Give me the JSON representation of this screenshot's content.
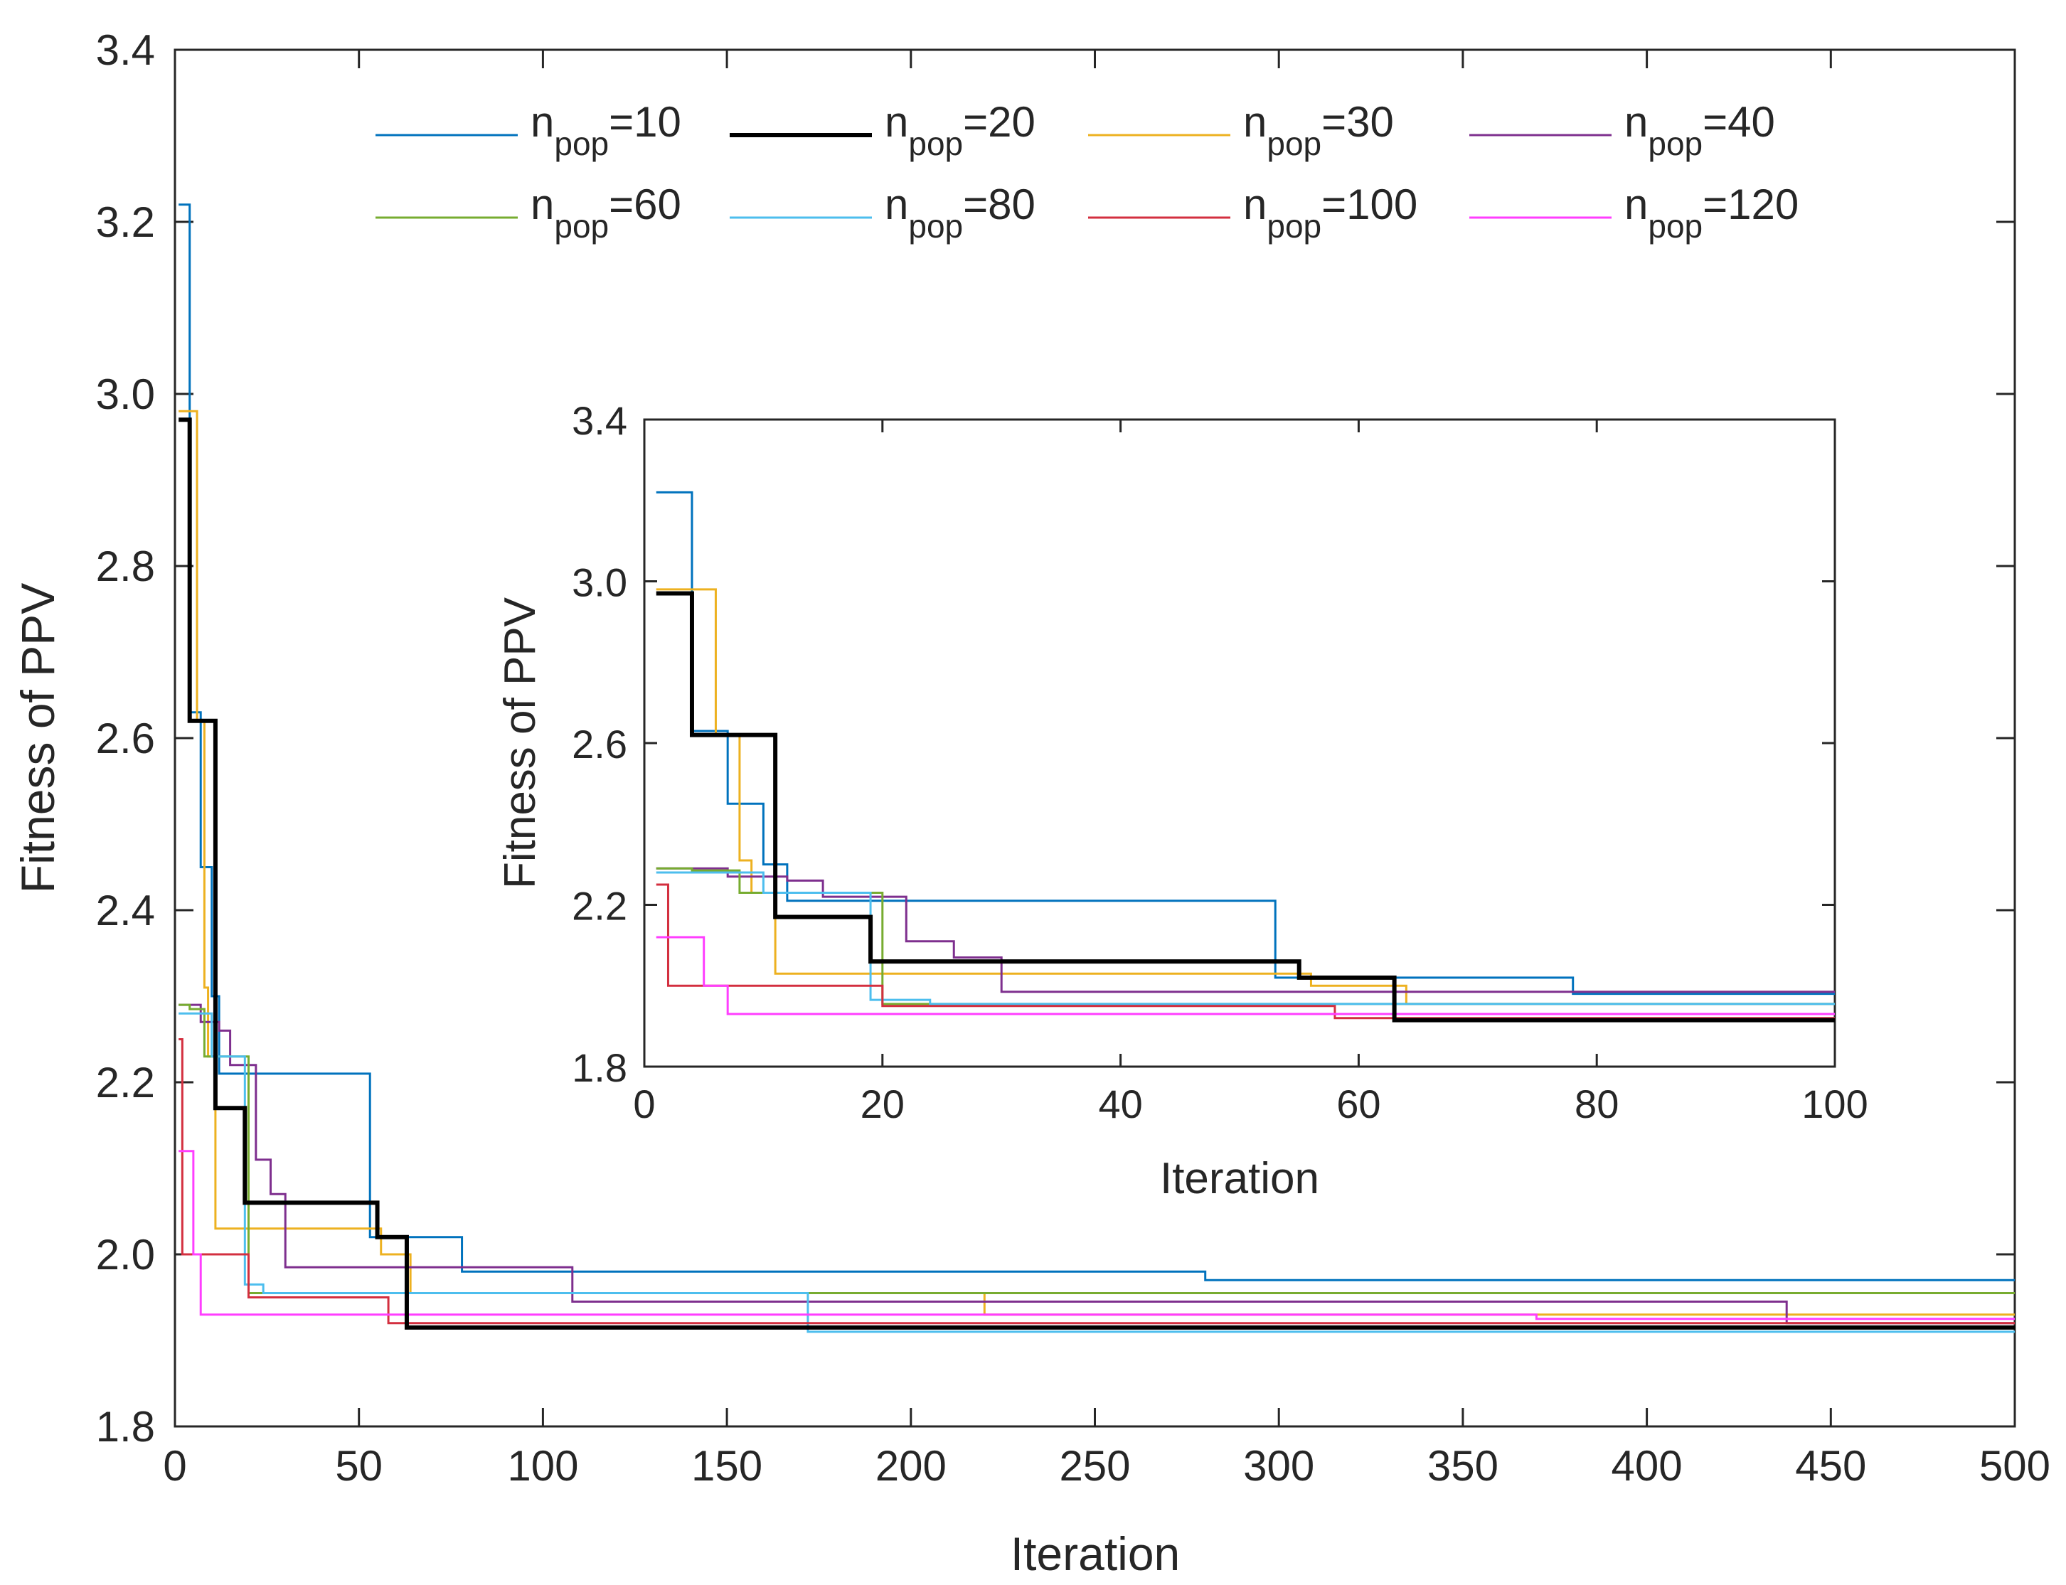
{
  "chart_data": [
    {
      "type": "line",
      "title": "",
      "xlabel": "Iteration",
      "ylabel": "Fitness of PPV",
      "xlim": [
        0,
        500
      ],
      "ylim": [
        1.8,
        3.4
      ],
      "xticks": [
        0,
        50,
        100,
        150,
        200,
        250,
        300,
        350,
        400,
        450,
        500
      ],
      "yticks": [
        1.8,
        2.0,
        2.2,
        2.4,
        2.6,
        2.8,
        3.0,
        3.2,
        3.4
      ],
      "xtick_labels": [
        "0",
        "50",
        "100",
        "150",
        "200",
        "250",
        "300",
        "350",
        "400",
        "450",
        "500"
      ],
      "ytick_labels": [
        "1.8",
        "2.0",
        "2.2",
        "2.4",
        "2.6",
        "2.8",
        "3.0",
        "3.2",
        "3.4"
      ],
      "legend_location": "top",
      "series": [
        {
          "name": "n_pop=10",
          "label_main": "n",
          "label_sub": "pop",
          "label_tail": "=10",
          "color": "#0072BD",
          "width": "thin",
          "x": [
            1,
            4,
            4,
            7,
            7,
            10,
            10,
            12,
            12,
            53,
            53,
            78,
            78,
            280,
            280,
            500
          ],
          "y": [
            3.22,
            3.22,
            2.63,
            2.63,
            2.45,
            2.45,
            2.3,
            2.3,
            2.21,
            2.21,
            2.02,
            2.02,
            1.98,
            1.98,
            1.97,
            1.97
          ]
        },
        {
          "name": "n_pop=20",
          "label_main": "n",
          "label_sub": "pop",
          "label_tail": "=20",
          "color": "#000000",
          "width": "thick",
          "x": [
            1,
            4,
            4,
            11,
            11,
            12,
            12,
            19,
            19,
            55,
            55,
            63,
            63,
            500
          ],
          "y": [
            2.97,
            2.97,
            2.62,
            2.62,
            2.17,
            2.17,
            2.17,
            2.17,
            2.06,
            2.06,
            2.02,
            2.02,
            1.915,
            1.915
          ]
        },
        {
          "name": "n_pop=30",
          "label_main": "n",
          "label_sub": "pop",
          "label_tail": "=30",
          "color": "#EDB120",
          "width": "thin",
          "x": [
            1,
            6,
            6,
            8,
            8,
            9,
            9,
            11,
            11,
            56,
            56,
            64,
            64,
            220,
            220,
            500
          ],
          "y": [
            2.98,
            2.98,
            2.62,
            2.62,
            2.31,
            2.31,
            2.23,
            2.23,
            2.03,
            2.03,
            2.0,
            2.0,
            1.955,
            1.955,
            1.93,
            1.93
          ]
        },
        {
          "name": "n_pop=40",
          "label_main": "n",
          "label_sub": "pop",
          "label_tail": "=40",
          "color": "#7E2F8E",
          "width": "thin",
          "x": [
            1,
            7,
            7,
            12,
            12,
            15,
            15,
            22,
            22,
            26,
            26,
            30,
            30,
            108,
            108,
            438,
            438,
            500
          ],
          "y": [
            2.29,
            2.29,
            2.27,
            2.27,
            2.26,
            2.26,
            2.22,
            2.22,
            2.11,
            2.11,
            2.07,
            2.07,
            1.985,
            1.985,
            1.945,
            1.945,
            1.92,
            1.92
          ]
        },
        {
          "name": "n_pop=60",
          "label_main": "n",
          "label_sub": "pop",
          "label_tail": "=60",
          "color": "#77AC30",
          "width": "thin",
          "x": [
            1,
            4,
            4,
            8,
            8,
            20,
            20,
            500
          ],
          "y": [
            2.29,
            2.29,
            2.285,
            2.285,
            2.23,
            2.23,
            1.955,
            1.955
          ]
        },
        {
          "name": "n_pop=80",
          "label_main": "n",
          "label_sub": "pop",
          "label_tail": "=80",
          "color": "#4DBEEE",
          "width": "thin",
          "x": [
            1,
            10,
            10,
            19,
            19,
            24,
            24,
            172,
            172,
            500
          ],
          "y": [
            2.28,
            2.28,
            2.23,
            2.23,
            1.965,
            1.965,
            1.955,
            1.955,
            1.91,
            1.91
          ]
        },
        {
          "name": "n_pop=100",
          "label_main": "n",
          "label_sub": "pop",
          "label_tail": "=100",
          "color": "#D32F3F",
          "width": "thin",
          "x": [
            1,
            2,
            2,
            20,
            20,
            58,
            58,
            500
          ],
          "y": [
            2.25,
            2.25,
            2.0,
            2.0,
            1.95,
            1.95,
            1.92,
            1.92
          ]
        },
        {
          "name": "n_pop=120",
          "label_main": "n",
          "label_sub": "pop",
          "label_tail": "=120",
          "color": "#FF3EFF",
          "width": "thin",
          "x": [
            1,
            5,
            5,
            7,
            7,
            370,
            370,
            500
          ],
          "y": [
            2.12,
            2.12,
            2.0,
            2.0,
            1.93,
            1.93,
            1.925,
            1.925
          ]
        }
      ]
    },
    {
      "type": "line",
      "title": "",
      "xlabel": "Iteration",
      "ylabel": "Fitness of PPV",
      "xlim": [
        0,
        100
      ],
      "ylim": [
        1.8,
        3.4
      ],
      "xticks": [
        0,
        20,
        40,
        60,
        80,
        100
      ],
      "yticks": [
        1.8,
        2.2,
        2.6,
        3.0,
        3.4
      ],
      "xtick_labels": [
        "0",
        "20",
        "40",
        "60",
        "80",
        "100"
      ],
      "ytick_labels": [
        "1.8",
        "2.2",
        "2.6",
        "3.0",
        "3.4"
      ],
      "series_source": "same series as main plot, zoomed to first 100 iterations"
    }
  ]
}
